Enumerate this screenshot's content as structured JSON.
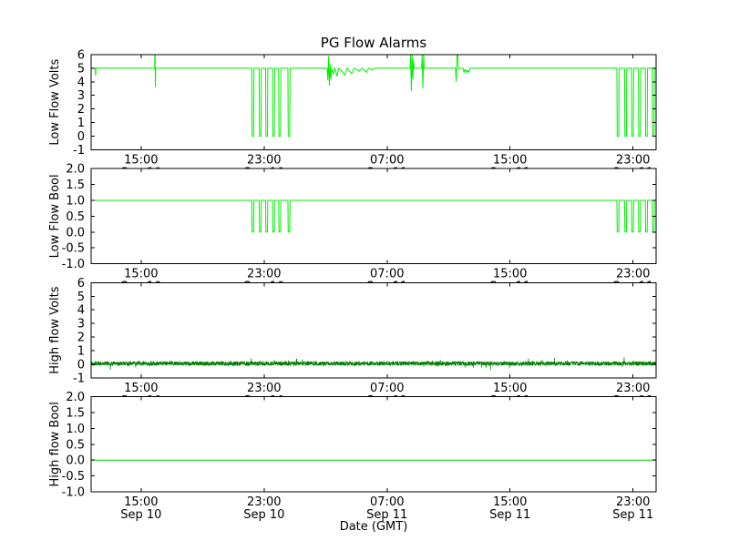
{
  "figure": {
    "title": "PG Flow Alarms",
    "xlabel": "Date (GMT)"
  },
  "style": {
    "background": "#ffffff",
    "axis_color": "#000000",
    "bright_green": "#00ee00",
    "dark_green": "#007f00"
  },
  "chart_data": {
    "type": "line",
    "title": "PG Flow Alarms",
    "xlabel": "Date (GMT)",
    "x_unit": "hours since Sep 10 00:00 GMT",
    "xlim": [
      11.75,
      48.5
    ],
    "grid": false,
    "legend": "none",
    "x_ticks": [
      {
        "t": 15,
        "time": "15:00",
        "date": "Sep 10"
      },
      {
        "t": 23,
        "time": "23:00",
        "date": "Sep 10"
      },
      {
        "t": 31,
        "time": "07:00",
        "date": "Sep 11"
      },
      {
        "t": 39,
        "time": "15:00",
        "date": "Sep 11"
      },
      {
        "t": 47,
        "time": "23:00",
        "date": "Sep 11"
      }
    ],
    "subplots": [
      {
        "ylabel": "Low Flow Volts",
        "ylim": [
          -1,
          6
        ],
        "yticks": [
          "-1",
          "0",
          "1",
          "2",
          "3",
          "4",
          "5",
          "6"
        ],
        "color": "#00ee00",
        "description": "Voltage mostly at 5 V with dropout pulses to 0 V near 23:00 Sep 10 and 23:00 Sep 11, plus noisy excursions 3.3-6 V during Sep 11 morning",
        "series": {
          "kind": "points",
          "points": [
            [
              11.75,
              5
            ],
            [
              12.02,
              5
            ],
            [
              12.03,
              4.5
            ],
            [
              12.05,
              4.5
            ],
            [
              12.06,
              5
            ],
            [
              15.88,
              5
            ],
            [
              15.89,
              6
            ],
            [
              15.91,
              6
            ],
            [
              15.93,
              3.6
            ],
            [
              15.95,
              5
            ],
            [
              22.2,
              5
            ],
            [
              22.22,
              0
            ],
            [
              22.32,
              0
            ],
            [
              22.34,
              5
            ],
            [
              22.68,
              5
            ],
            [
              22.7,
              0
            ],
            [
              22.8,
              0
            ],
            [
              22.82,
              5
            ],
            [
              23.1,
              5
            ],
            [
              23.12,
              0
            ],
            [
              23.22,
              0
            ],
            [
              23.24,
              5
            ],
            [
              23.55,
              5
            ],
            [
              23.57,
              0
            ],
            [
              23.67,
              0
            ],
            [
              23.69,
              5
            ],
            [
              23.95,
              5
            ],
            [
              23.97,
              0
            ],
            [
              24.07,
              0
            ],
            [
              24.09,
              5
            ],
            [
              24.55,
              5
            ],
            [
              24.57,
              0
            ],
            [
              24.67,
              0
            ],
            [
              24.69,
              5
            ],
            [
              27.1,
              5
            ],
            [
              27.15,
              4.1
            ],
            [
              27.2,
              5.9
            ],
            [
              27.25,
              3.7
            ],
            [
              27.3,
              5.3
            ],
            [
              27.35,
              4.2
            ],
            [
              27.4,
              5.0
            ],
            [
              27.5,
              4.6
            ],
            [
              27.6,
              5.0
            ],
            [
              27.75,
              4.4
            ],
            [
              27.85,
              5.0
            ],
            [
              28.05,
              4.8
            ],
            [
              28.25,
              4.5
            ],
            [
              28.4,
              5.0
            ],
            [
              28.7,
              4.6
            ],
            [
              28.85,
              5.0
            ],
            [
              29.2,
              4.8
            ],
            [
              29.4,
              5.0
            ],
            [
              29.65,
              4.7
            ],
            [
              29.8,
              5.0
            ],
            [
              30.05,
              4.85
            ],
            [
              30.15,
              5
            ],
            [
              32.5,
              5
            ],
            [
              32.53,
              6
            ],
            [
              32.58,
              3.3
            ],
            [
              32.63,
              6
            ],
            [
              32.68,
              4.2
            ],
            [
              32.72,
              5.6
            ],
            [
              32.76,
              5
            ],
            [
              33.25,
              5
            ],
            [
              33.28,
              6
            ],
            [
              33.33,
              3.5
            ],
            [
              33.38,
              6
            ],
            [
              33.42,
              5
            ],
            [
              35.45,
              5
            ],
            [
              35.5,
              4.0
            ],
            [
              35.55,
              6
            ],
            [
              35.6,
              6
            ],
            [
              35.64,
              5
            ],
            [
              35.95,
              5
            ],
            [
              36.0,
              4.7
            ],
            [
              36.08,
              4.9
            ],
            [
              36.16,
              4.7
            ],
            [
              36.24,
              4.85
            ],
            [
              36.32,
              4.7
            ],
            [
              36.4,
              5
            ],
            [
              45.95,
              5
            ],
            [
              45.97,
              0
            ],
            [
              46.07,
              0
            ],
            [
              46.09,
              5
            ],
            [
              46.45,
              5
            ],
            [
              46.47,
              0
            ],
            [
              46.57,
              0
            ],
            [
              46.59,
              5
            ],
            [
              46.9,
              5
            ],
            [
              46.92,
              0
            ],
            [
              47.02,
              0
            ],
            [
              47.04,
              5
            ],
            [
              47.35,
              5
            ],
            [
              47.37,
              0
            ],
            [
              47.47,
              0
            ],
            [
              47.49,
              5
            ],
            [
              47.8,
              5
            ],
            [
              47.82,
              0
            ],
            [
              47.92,
              0
            ],
            [
              47.94,
              5
            ],
            [
              48.25,
              5
            ],
            [
              48.27,
              0
            ],
            [
              48.37,
              0
            ],
            [
              48.39,
              5
            ],
            [
              48.5,
              5
            ]
          ]
        }
      },
      {
        "ylabel": "Low Flow Bool",
        "ylim": [
          -1,
          2
        ],
        "yticks": [
          "-1.0",
          "-0.5",
          "0.0",
          "0.5",
          "1.0",
          "1.5",
          "2.0"
        ],
        "color": "#00ee00",
        "description": "Boolean mostly 1 with pulses to 0 matching the volts dropouts",
        "series": {
          "kind": "points",
          "points": [
            [
              11.75,
              1
            ],
            [
              22.2,
              1
            ],
            [
              22.22,
              0
            ],
            [
              22.32,
              0
            ],
            [
              22.34,
              1
            ],
            [
              22.68,
              1
            ],
            [
              22.7,
              0
            ],
            [
              22.8,
              0
            ],
            [
              22.82,
              1
            ],
            [
              23.1,
              1
            ],
            [
              23.12,
              0
            ],
            [
              23.22,
              0
            ],
            [
              23.24,
              1
            ],
            [
              23.55,
              1
            ],
            [
              23.57,
              0
            ],
            [
              23.67,
              0
            ],
            [
              23.69,
              1
            ],
            [
              23.95,
              1
            ],
            [
              23.97,
              0
            ],
            [
              24.07,
              0
            ],
            [
              24.09,
              1
            ],
            [
              24.55,
              1
            ],
            [
              24.57,
              0
            ],
            [
              24.67,
              0
            ],
            [
              24.69,
              1
            ],
            [
              45.95,
              1
            ],
            [
              45.97,
              0
            ],
            [
              46.07,
              0
            ],
            [
              46.09,
              1
            ],
            [
              46.45,
              1
            ],
            [
              46.47,
              0
            ],
            [
              46.57,
              0
            ],
            [
              46.59,
              1
            ],
            [
              46.9,
              1
            ],
            [
              46.92,
              0
            ],
            [
              47.02,
              0
            ],
            [
              47.04,
              1
            ],
            [
              47.35,
              1
            ],
            [
              47.37,
              0
            ],
            [
              47.47,
              0
            ],
            [
              47.49,
              1
            ],
            [
              47.8,
              1
            ],
            [
              47.82,
              0
            ],
            [
              47.92,
              0
            ],
            [
              47.94,
              1
            ],
            [
              48.25,
              1
            ],
            [
              48.27,
              0
            ],
            [
              48.37,
              0
            ],
            [
              48.39,
              1
            ],
            [
              48.5,
              1
            ]
          ]
        }
      },
      {
        "ylabel": "High flow Volts",
        "ylim": [
          -1,
          6
        ],
        "yticks": [
          "-1",
          "0",
          "1",
          "2",
          "3",
          "4",
          "5",
          "6"
        ],
        "color": "#007f00",
        "description": "Dense noise band around 0 V (roughly -0.3 to +0.4 V) for the whole record",
        "series": {
          "kind": "noise",
          "baseline": 0.05,
          "amplitude": 0.16,
          "spike_amplitude": 0.35,
          "step_hours": 0.01,
          "seed": 42
        }
      },
      {
        "ylabel": "High flow Bool",
        "ylim": [
          -1,
          2
        ],
        "yticks": [
          "-1.0",
          "-0.5",
          "0.0",
          "0.5",
          "1.0",
          "1.5",
          "2.0"
        ],
        "color": "#00cc00",
        "description": "Constant 0 for the whole record",
        "series": {
          "kind": "points",
          "points": [
            [
              11.75,
              0
            ],
            [
              48.5,
              0
            ]
          ]
        }
      }
    ]
  }
}
